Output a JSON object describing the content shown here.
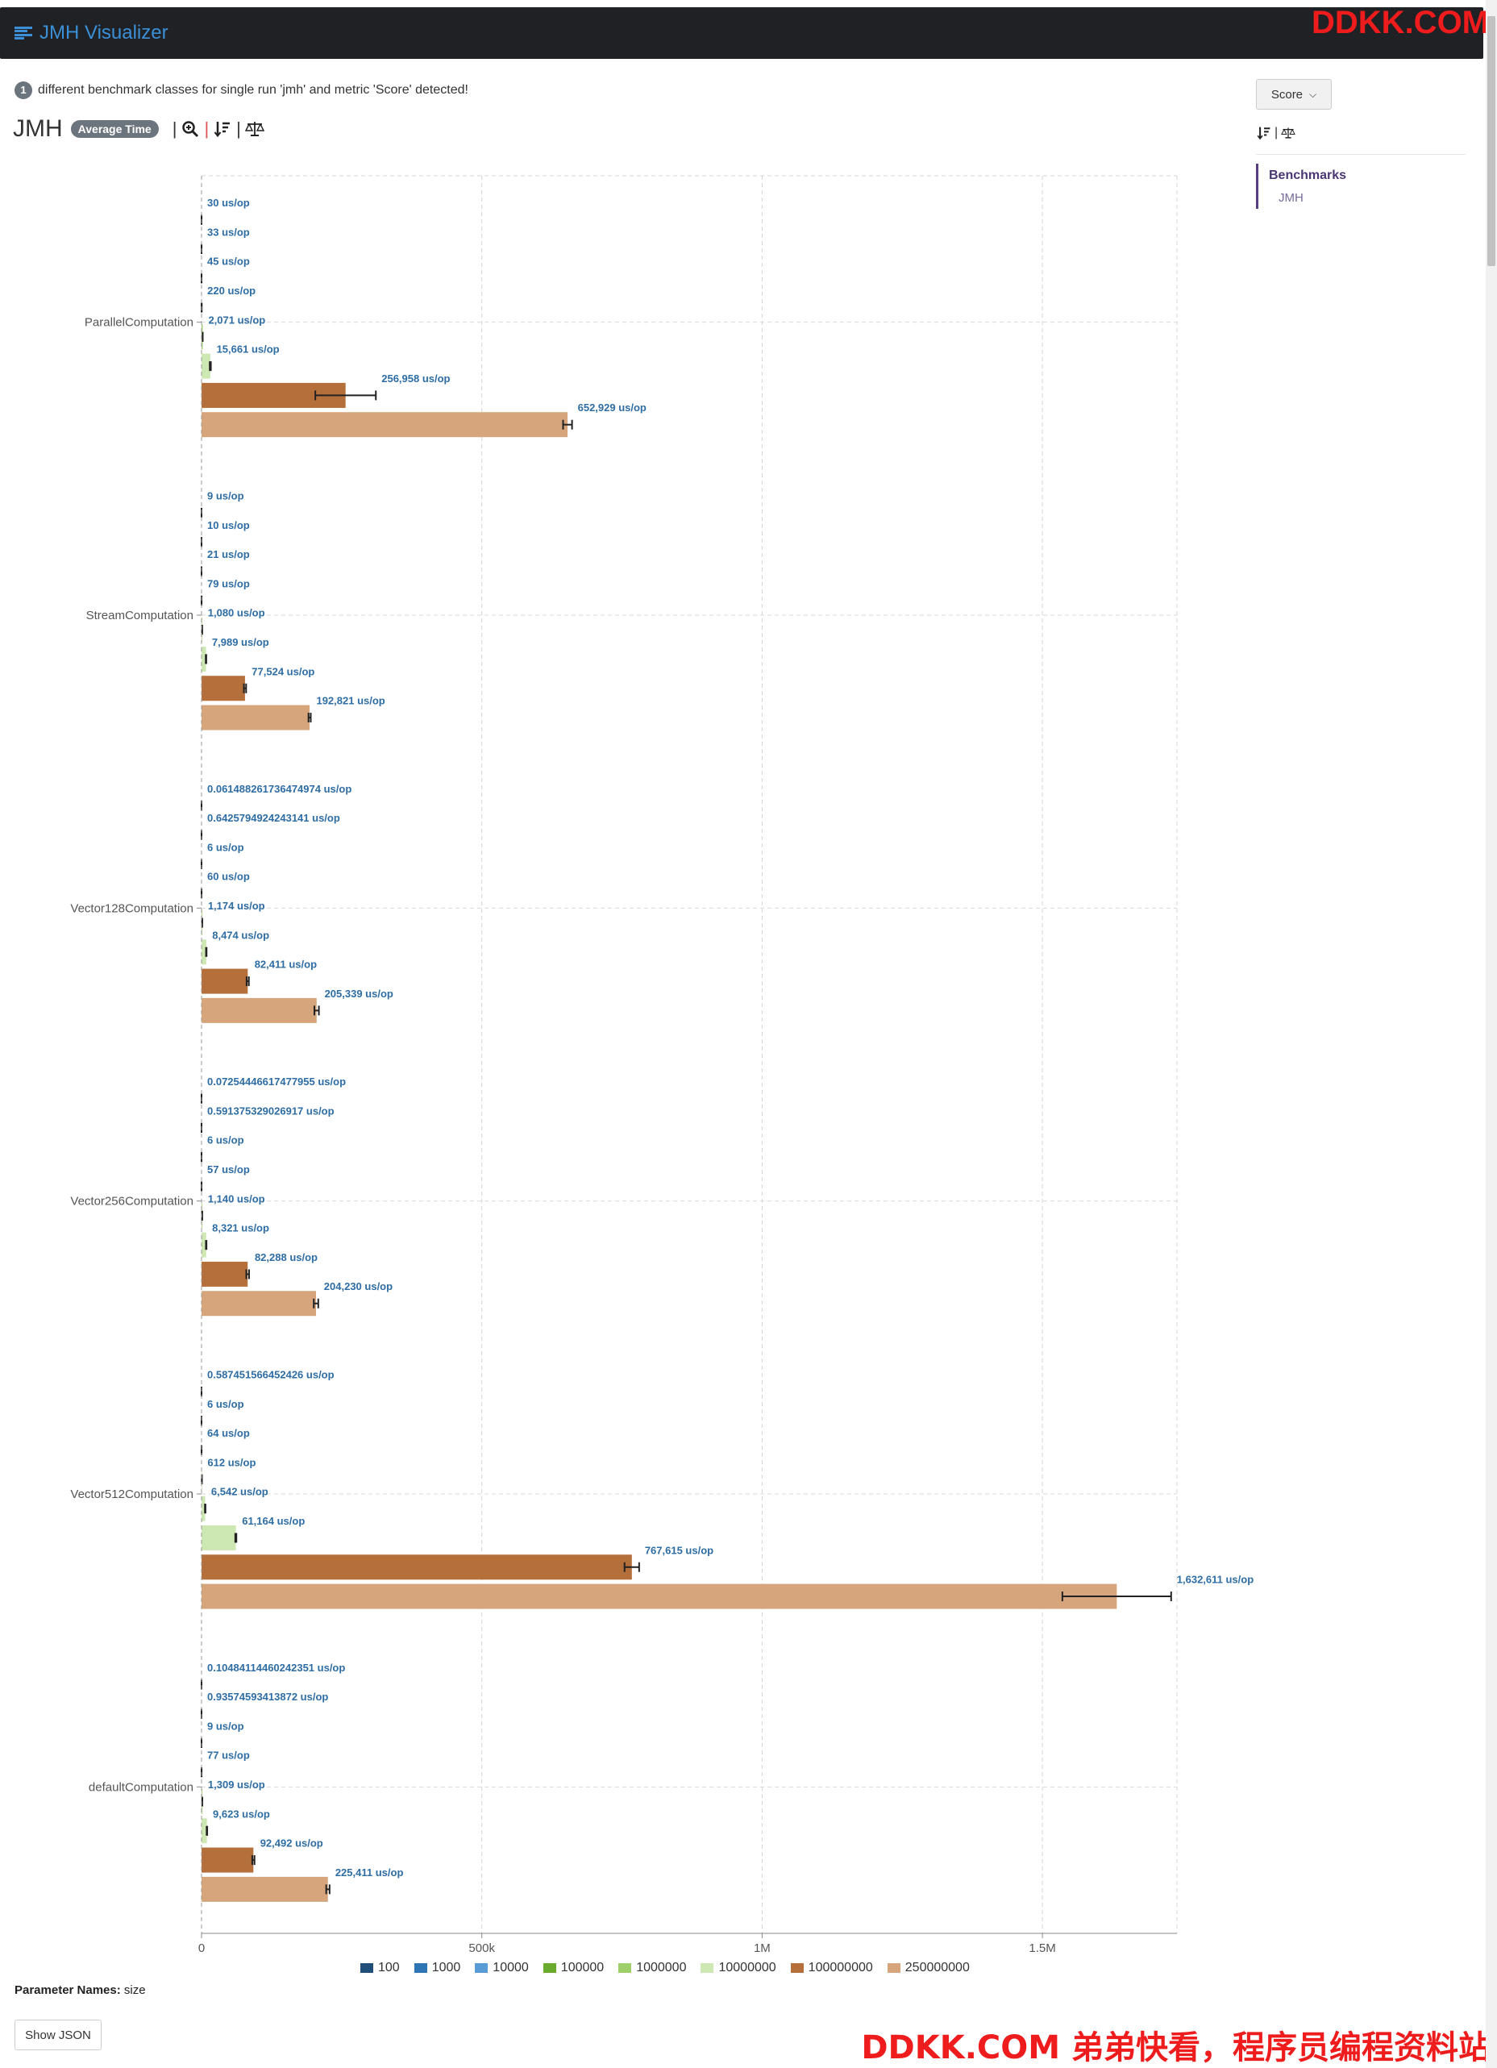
{
  "app": {
    "title": "JMH Visualizer"
  },
  "watermark": {
    "top": "DDKK.COM",
    "bottom": "DDKK.COM 弟弟快看，程序员编程资料站"
  },
  "info": {
    "count": "1",
    "text": "different benchmark classes for single run 'jmh' and metric 'Score' detected!"
  },
  "header": {
    "title": "JMH",
    "mode_badge": "Average Time"
  },
  "sidebar": {
    "select_value": "Score",
    "nav_heading": "Benchmarks",
    "nav_item": "JMH"
  },
  "params": {
    "label": "Parameter Names:",
    "value": "size"
  },
  "show_json_label": "Show JSON",
  "icons": {
    "brand": "list-icon",
    "zoom": "zoom-icon",
    "sort": "sort-desc-icon",
    "scale": "balance-scale-icon",
    "select_chevron": "chevron-down-icon"
  },
  "colors": {
    "100": "#1f4e79",
    "1000": "#2e75b6",
    "10000": "#5b9bd5",
    "100000": "#6aaa2c",
    "1000000": "#9fcf6b",
    "10000000": "#cde8b3",
    "100000000": "#b46f3a",
    "250000000": "#d6a57c",
    "label": "#2e6da4"
  },
  "chart_data": {
    "type": "bar",
    "orientation": "horizontal",
    "unit": "us/op",
    "xlim": [
      0,
      1740000
    ],
    "xticks": [
      {
        "value": 0,
        "label": "0"
      },
      {
        "value": 500000,
        "label": "500k"
      },
      {
        "value": 1000000,
        "label": "1M"
      },
      {
        "value": 1500000,
        "label": "1.5M"
      }
    ],
    "grid": true,
    "legend_position": "bottom",
    "series_names": [
      "100",
      "1000",
      "10000",
      "100000",
      "1000000",
      "10000000",
      "100000000",
      "250000000"
    ],
    "categories": [
      {
        "name": "ParallelComputation",
        "bars": [
          {
            "series": "100",
            "value": 30,
            "label": "30 us/op"
          },
          {
            "series": "1000",
            "value": 33,
            "label": "33 us/op"
          },
          {
            "series": "10000",
            "value": 45,
            "label": "45 us/op"
          },
          {
            "series": "100000",
            "value": 220,
            "label": "220 us/op"
          },
          {
            "series": "1000000",
            "value": 2071,
            "label": "2,071 us/op"
          },
          {
            "series": "10000000",
            "value": 15661,
            "label": "15,661 us/op",
            "err": 1000
          },
          {
            "series": "100000000",
            "value": 256958,
            "label": "256,958 us/op",
            "err": 54000
          },
          {
            "series": "250000000",
            "value": 652929,
            "label": "652,929 us/op",
            "err": 8000
          }
        ]
      },
      {
        "name": "StreamComputation",
        "bars": [
          {
            "series": "100",
            "value": 9,
            "label": "9 us/op"
          },
          {
            "series": "1000",
            "value": 10,
            "label": "10 us/op"
          },
          {
            "series": "10000",
            "value": 21,
            "label": "21 us/op"
          },
          {
            "series": "100000",
            "value": 79,
            "label": "79 us/op"
          },
          {
            "series": "1000000",
            "value": 1080,
            "label": "1,080 us/op"
          },
          {
            "series": "10000000",
            "value": 7989,
            "label": "7,989 us/op",
            "err": 500
          },
          {
            "series": "100000000",
            "value": 77524,
            "label": "77,524 us/op",
            "err": 2000
          },
          {
            "series": "250000000",
            "value": 192821,
            "label": "192,821 us/op",
            "err": 2000
          }
        ]
      },
      {
        "name": "Vector128Computation",
        "bars": [
          {
            "series": "100",
            "value": 0.061488261736474974,
            "label": "0.061488261736474974 us/op"
          },
          {
            "series": "1000",
            "value": 0.6425794924243141,
            "label": "0.6425794924243141 us/op"
          },
          {
            "series": "10000",
            "value": 6,
            "label": "6 us/op"
          },
          {
            "series": "100000",
            "value": 60,
            "label": "60 us/op"
          },
          {
            "series": "1000000",
            "value": 1174,
            "label": "1,174 us/op"
          },
          {
            "series": "10000000",
            "value": 8474,
            "label": "8,474 us/op",
            "err": 500
          },
          {
            "series": "100000000",
            "value": 82411,
            "label": "82,411 us/op",
            "err": 2000
          },
          {
            "series": "250000000",
            "value": 205339,
            "label": "205,339 us/op",
            "err": 4000
          }
        ]
      },
      {
        "name": "Vector256Computation",
        "bars": [
          {
            "series": "100",
            "value": 0.07254446617477955,
            "label": "0.07254446617477955 us/op"
          },
          {
            "series": "1000",
            "value": 0.591375329026917,
            "label": "0.591375329026917 us/op"
          },
          {
            "series": "10000",
            "value": 6,
            "label": "6 us/op"
          },
          {
            "series": "100000",
            "value": 57,
            "label": "57 us/op"
          },
          {
            "series": "1000000",
            "value": 1140,
            "label": "1,140 us/op"
          },
          {
            "series": "10000000",
            "value": 8321,
            "label": "8,321 us/op",
            "err": 500
          },
          {
            "series": "100000000",
            "value": 82288,
            "label": "82,288 us/op",
            "err": 2500
          },
          {
            "series": "250000000",
            "value": 204230,
            "label": "204,230 us/op",
            "err": 4000
          }
        ]
      },
      {
        "name": "Vector512Computation",
        "bars": [
          {
            "series": "1000",
            "value": 0.587451566452426,
            "label": "0.587451566452426 us/op"
          },
          {
            "series": "10000",
            "value": 6,
            "label": "6 us/op"
          },
          {
            "series": "100000",
            "value": 64,
            "label": "64 us/op"
          },
          {
            "series": "1000000",
            "value": 612,
            "label": "612 us/op"
          },
          {
            "series": "10000000",
            "value": 6542,
            "label": "6,542 us/op",
            "err": 500
          },
          {
            "series": "100000000",
            "value": 61164,
            "label": "61,164 us/op",
            "err": 1000,
            "color_series": "10000000"
          },
          {
            "series": "100000000",
            "value": 767615,
            "label": "767,615 us/op",
            "err": 13000
          },
          {
            "series": "250000000",
            "value": 1632611,
            "label": "1,632,611 us/op",
            "err": 97000
          }
        ]
      },
      {
        "name": "defaultComputation",
        "bars": [
          {
            "series": "100",
            "value": 0.10484114460242351,
            "label": "0.10484114460242351 us/op"
          },
          {
            "series": "1000",
            "value": 0.93574593413872,
            "label": "0.93574593413872 us/op"
          },
          {
            "series": "10000",
            "value": 9,
            "label": "9 us/op"
          },
          {
            "series": "100000",
            "value": 77,
            "label": "77 us/op"
          },
          {
            "series": "1000000",
            "value": 1309,
            "label": "1,309 us/op"
          },
          {
            "series": "10000000",
            "value": 9623,
            "label": "9,623 us/op",
            "err": 500
          },
          {
            "series": "100000000",
            "value": 92492,
            "label": "92,492 us/op",
            "err": 2000
          },
          {
            "series": "250000000",
            "value": 225411,
            "label": "225,411 us/op",
            "err": 3000
          }
        ]
      }
    ]
  }
}
